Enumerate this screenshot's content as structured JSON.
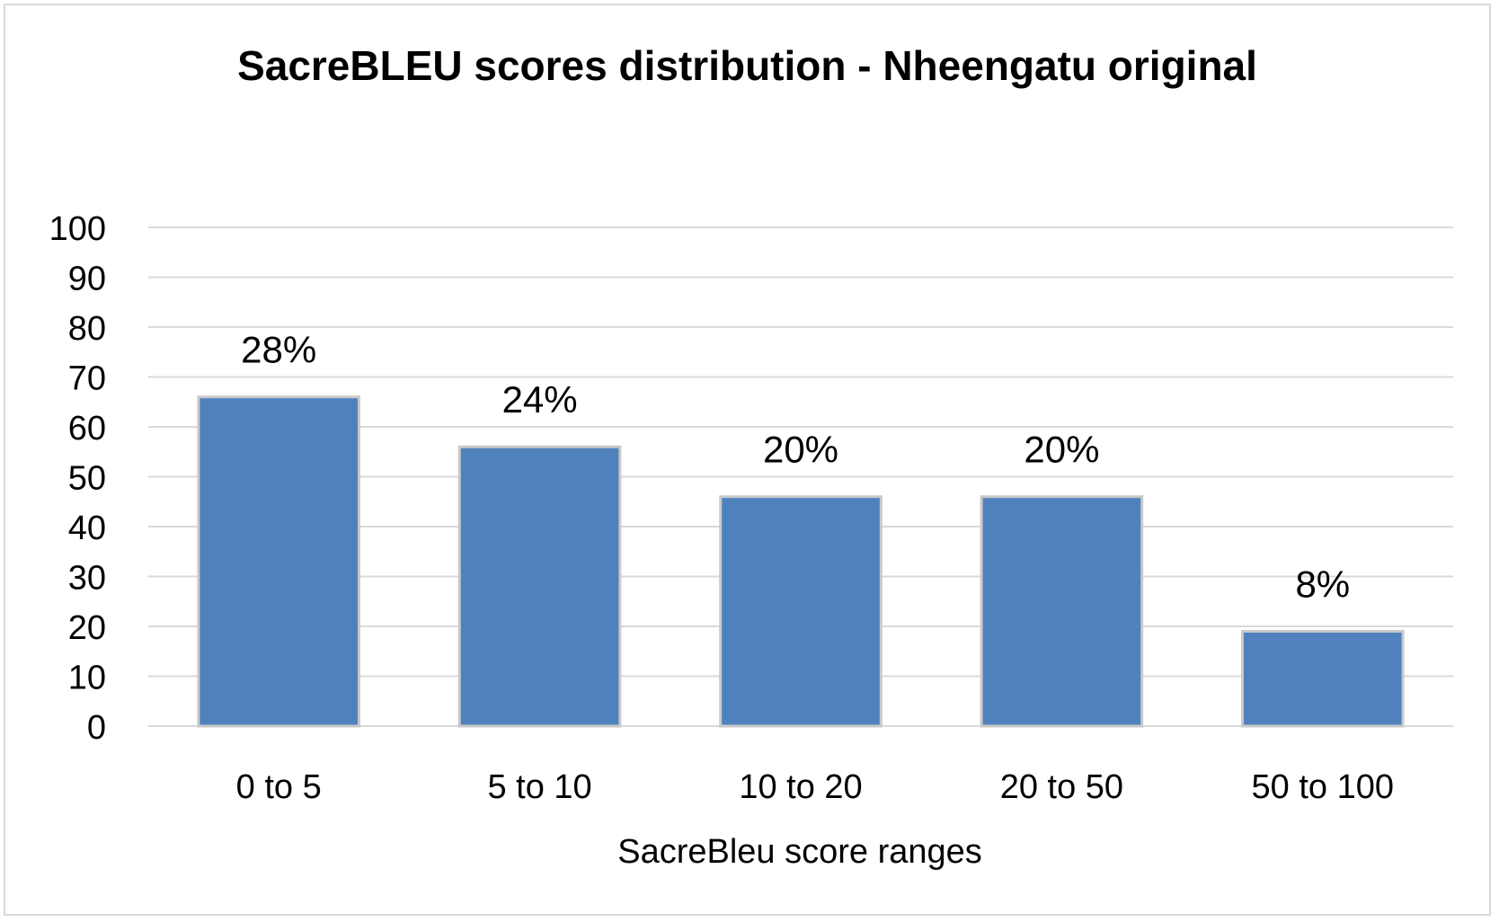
{
  "chart_data": {
    "type": "bar",
    "title": "SacreBLEU scores distribution - Nheengatu original",
    "xlabel": "SacreBleu score ranges",
    "ylabel": "",
    "categories": [
      "0 to 5",
      "5 to 10",
      "10 to 20",
      "20 to 50",
      "50 to 100"
    ],
    "values": [
      66,
      56,
      46,
      46,
      19
    ],
    "data_labels": [
      "28%",
      "24%",
      "20%",
      "20%",
      "8%"
    ],
    "ylim": [
      0,
      100
    ],
    "yticks": [
      "0",
      "10",
      "20",
      "30",
      "40",
      "50",
      "60",
      "70",
      "80",
      "90",
      "100"
    ],
    "grid": true,
    "legend": "none",
    "colors": {
      "bar_fill": "#4f81bd",
      "bar_stroke": "#c9c9c9",
      "grid": "#d9d9d9",
      "frame": "#d9d9d9"
    }
  }
}
